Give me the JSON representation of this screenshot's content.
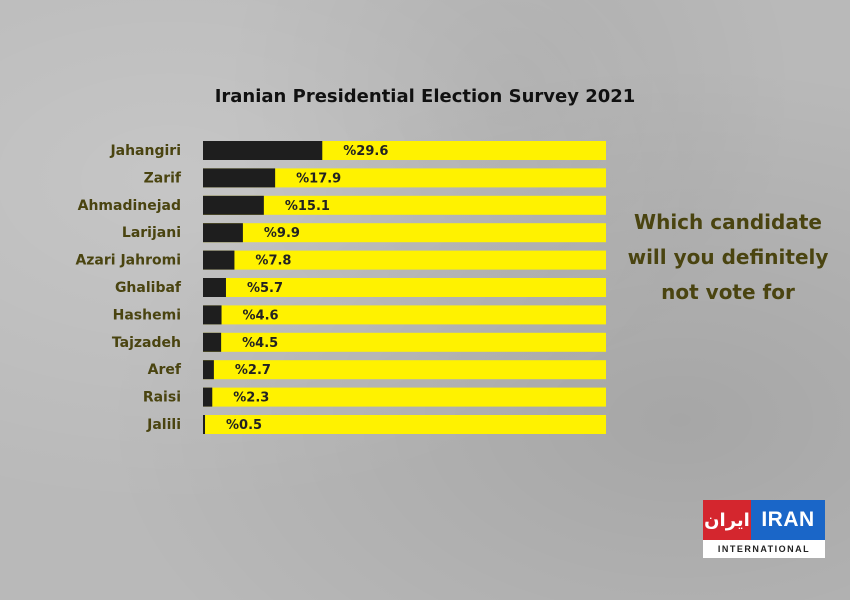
{
  "chart_data": {
    "type": "bar",
    "orientation": "horizontal",
    "title": "Iranian Presidential Election Survey 2021",
    "categories": [
      "Jahangiri",
      "Zarif",
      "Ahmadinejad",
      "Larijani",
      "Azari Jahromi",
      "Ghalibaf",
      "Hashemi",
      "Tajzadeh",
      "Aref",
      "Raisi",
      "Jalili"
    ],
    "values": [
      29.6,
      17.9,
      15.1,
      9.9,
      7.8,
      5.7,
      4.6,
      4.5,
      2.7,
      2.3,
      0.5
    ],
    "value_labels": [
      "%29.6",
      "%17.9",
      "%15.1",
      "%9.9",
      "%7.8",
      "%5.7",
      "%4.6",
      "%4.5",
      "%2.7",
      "%2.3",
      "%0.5"
    ],
    "xlim": [
      0,
      100
    ],
    "colors": {
      "bar": "#1e1e1e",
      "track": "#fff200",
      "label": "#4a4410"
    }
  },
  "question": {
    "lines": [
      "Which candidate",
      "will you definitely",
      "not vote for"
    ]
  },
  "logo": {
    "farsi": "ایران",
    "english": "IRAN",
    "subtitle": "INTERNATIONAL",
    "colors": {
      "blue": "#1a66c8",
      "red": "#d4262e"
    }
  }
}
